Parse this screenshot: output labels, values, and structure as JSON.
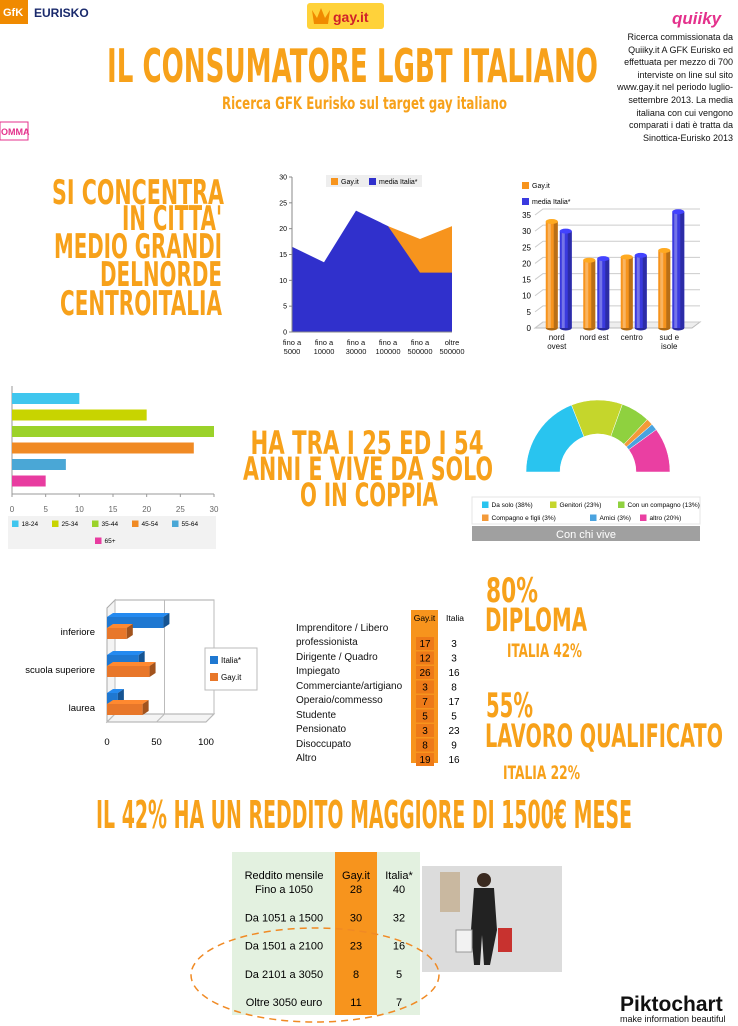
{
  "logos": {
    "gfk": "GfK",
    "eurisko": "EURISKO",
    "gayit": "gay.it",
    "quiiky": "quiiky",
    "omma": "OMMA"
  },
  "title": "IL CONSUMATORE LGBT ITALIANO",
  "subtitle": "Ricerca GFK Eurisko sul target gay italiano",
  "note": [
    "Ricerca commissionata da",
    "Quiiky.it A GFK Eurisko ed",
    "effettuata per mezzo di 700",
    "interviste on line sul sito",
    "www.gay.it nel periodo luglio-",
    "settembre 2013. La media",
    "italiana con cui vengono",
    "comparati i dati è tratta da",
    "Sinottica-Eurisko 2013"
  ],
  "headline_location": [
    "SI CONCENTRA",
    "IN CITTA'",
    "MEDIO GRANDI",
    "DELNORDE",
    "CENTROITALIA"
  ],
  "headline_age": [
    "HA TRA I 25 ED I 54",
    "ANNI E VIVE DA SOLO",
    "O IN COPPIA"
  ],
  "stats": {
    "diploma_value": "80%",
    "diploma_label": "DIPLOMA",
    "diploma_italia": "ITALIA 42%",
    "work_value": "55%",
    "work_label": "LAVORO QUALIFICATO",
    "work_italia": "ITALIA 22%"
  },
  "headline_income": "IL 42% HA UN REDDITO MAGGIORE DI 1500€ MESE",
  "professions": {
    "columns": [
      "Gay.it",
      "Italia"
    ],
    "rows": [
      {
        "label": "Imprenditore / Libero professionista",
        "values": [
          17,
          3
        ]
      },
      {
        "label": "Dirigente  / Quadro",
        "values": [
          12,
          3
        ]
      },
      {
        "label": "Impiegato",
        "values": [
          26,
          16
        ]
      },
      {
        "label": "Commerciante/artigiano",
        "values": [
          3,
          8
        ]
      },
      {
        "label": "Operaio/commesso",
        "values": [
          7,
          17
        ]
      },
      {
        "label": "Studente",
        "values": [
          5,
          5
        ]
      },
      {
        "label": "Pensionato",
        "values": [
          3,
          23
        ]
      },
      {
        "label": "Disoccupato",
        "values": [
          8,
          9
        ]
      },
      {
        "label": "Altro",
        "values": [
          19,
          16
        ]
      }
    ]
  },
  "income": {
    "columns": [
      "Reddito mensile",
      "Gay.it",
      "Italia*"
    ],
    "rows": [
      {
        "label": "Fino a 1050",
        "values": [
          28,
          40
        ]
      },
      {
        "label": "Da 1051 a 1500",
        "values": [
          30,
          32
        ]
      },
      {
        "label": "Da 1501 a 2100",
        "values": [
          23,
          16
        ]
      },
      {
        "label": "Da 2101 a 3050",
        "values": [
          8,
          5
        ]
      },
      {
        "label": "Oltre 3050 euro",
        "values": [
          11,
          7
        ]
      }
    ]
  },
  "footer": {
    "brand": "Piktochart",
    "tagline": "make information beautiful"
  },
  "chart_data": [
    {
      "type": "area",
      "categories": [
        "fino a 5000",
        "fino a 10000",
        "fino a 30000",
        "fino a 100000",
        "fino a 500000",
        "oltre 500000"
      ],
      "series": [
        {
          "name": "Gay.it",
          "color": "#f7941d",
          "values": [
            15,
            12,
            22,
            20.5,
            18,
            20.5
          ]
        },
        {
          "name": "media Italia*",
          "color": "#3030cc",
          "values": [
            16.5,
            13.5,
            23.5,
            20.5,
            11.5,
            11.5
          ]
        }
      ],
      "ylim": [
        0,
        30
      ],
      "yticks": [
        0,
        5,
        10,
        15,
        20,
        25,
        30
      ]
    },
    {
      "type": "bar3d",
      "categories": [
        "nord ovest",
        "nord est",
        "centro",
        "sud e isole"
      ],
      "series": [
        {
          "name": "Gay.it",
          "color": "#f7941d",
          "values": [
            33,
            21,
            22,
            24
          ]
        },
        {
          "name": "media Italia*",
          "color": "#3a3adf",
          "values": [
            30,
            21.5,
            22.5,
            36
          ]
        }
      ],
      "ylim": [
        0,
        35
      ],
      "yticks": [
        0,
        5,
        10,
        15,
        20,
        25,
        30,
        35
      ]
    },
    {
      "type": "hbar",
      "categories": [
        "18-24",
        "25-34",
        "35-44",
        "45-54",
        "55-64",
        "65+"
      ],
      "values": [
        10,
        20,
        30,
        27,
        8,
        5
      ],
      "colors": [
        "#3fc6ee",
        "#c8d400",
        "#9bd22a",
        "#f08a24",
        "#4aa7d6",
        "#e83ca0"
      ],
      "xlim": [
        0,
        30
      ],
      "xticks": [
        0,
        5,
        10,
        15,
        20,
        25,
        30
      ]
    },
    {
      "type": "pie",
      "title": "Con chi vive",
      "categories": [
        "Da solo (38%)",
        "Genitori (23%)",
        "Con un compagno (13%)",
        "Compagno e figli (3%)",
        "Amici (3%)",
        "altro (20%)"
      ],
      "values": [
        38,
        23,
        13,
        3,
        3,
        20
      ],
      "colors": [
        "#29c4ef",
        "#c5d62c",
        "#8fd13f",
        "#f39a3a",
        "#4aa3df",
        "#ea3fa2"
      ]
    },
    {
      "type": "hbar3d",
      "categories": [
        "inferiore",
        "scuola superiore",
        "laurea"
      ],
      "series": [
        {
          "name": "Italia*",
          "color": "#1f78d1",
          "values": [
            57,
            32,
            11
          ]
        },
        {
          "name": "Gay.it",
          "color": "#e8772a",
          "values": [
            20,
            43,
            36
          ]
        }
      ],
      "xlim": [
        0,
        100
      ],
      "xticks": [
        0,
        50,
        100
      ]
    }
  ]
}
